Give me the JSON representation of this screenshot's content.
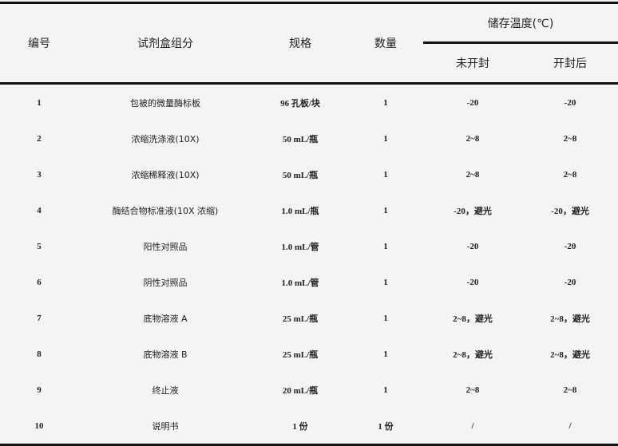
{
  "headers": {
    "no": "编号",
    "component": "试剂盒组分",
    "spec": "规格",
    "qty": "数量",
    "storage": "储存温度(℃)",
    "unopened": "未开封",
    "opened": "开封后"
  },
  "rows": [
    {
      "no": "1",
      "component": "包被的微量酶标板",
      "spec": "96 孔板/块",
      "qty": "1",
      "unopened": "-20",
      "opened": "-20"
    },
    {
      "no": "2",
      "component": "浓缩洗涤液(10X)",
      "spec": "50 mL/瓶",
      "qty": "1",
      "unopened": "2~8",
      "opened": "2~8"
    },
    {
      "no": "3",
      "component": "浓缩稀释液(10X)",
      "spec": "50 mL/瓶",
      "qty": "1",
      "unopened": "2~8",
      "opened": "2~8"
    },
    {
      "no": "4",
      "component": "酶结合物标准液(10X 浓缩)",
      "spec": "1.0 mL/瓶",
      "qty": "1",
      "unopened": "-20，避光",
      "opened": "-20，避光"
    },
    {
      "no": "5",
      "component": "阳性对照品",
      "spec": "1.0 mL/管",
      "qty": "1",
      "unopened": "-20",
      "opened": "-20"
    },
    {
      "no": "6",
      "component": "阴性对照品",
      "spec": "1.0 mL/管",
      "qty": "1",
      "unopened": "-20",
      "opened": "-20"
    },
    {
      "no": "7",
      "component": "底物溶液 A",
      "spec": "25 mL/瓶",
      "qty": "1",
      "unopened": "2~8，避光",
      "opened": "2~8，避光"
    },
    {
      "no": "8",
      "component": "底物溶液 B",
      "spec": "25 mL/瓶",
      "qty": "1",
      "unopened": "2~8，避光",
      "opened": "2~8，避光"
    },
    {
      "no": "9",
      "component": "终止液",
      "spec": "20 mL/瓶",
      "qty": "1",
      "unopened": "2~8",
      "opened": "2~8"
    },
    {
      "no": "10",
      "component": "说明书",
      "spec": "1 份",
      "qty": "1 份",
      "unopened": "/",
      "opened": "/"
    }
  ]
}
